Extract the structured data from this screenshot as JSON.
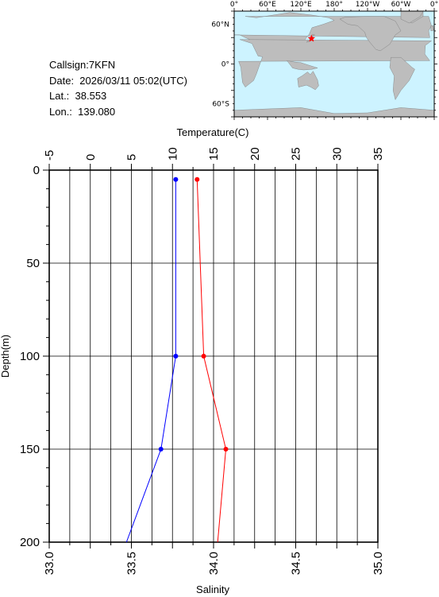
{
  "station": {
    "callsign_label": "Callsign:7KFN",
    "date_label": "Date:  2026/03/11 05:02(UTC)",
    "lat_label": "Lat.:  38.553",
    "lon_label": "Lon.:  139.080"
  },
  "map": {
    "lon_labels": [
      "0°",
      "60°E",
      "120°E",
      "180°",
      "120°W",
      "60°W",
      "0°"
    ],
    "lat_labels": [
      "60°N",
      "0°",
      "60°S"
    ],
    "ocean_color": "#cdf3ff",
    "land_color": "#bdbdbd",
    "marker": {
      "lat": 38.553,
      "lon": 139.08,
      "color": "#ff0000",
      "shape": "star"
    }
  },
  "chart_data": {
    "type": "line",
    "ylabel": "Depth(m)",
    "ylim": [
      0,
      200
    ],
    "y_inverted": true,
    "y_ticks": [
      0,
      50,
      100,
      150,
      200
    ],
    "temperature_axis": {
      "label": "Temperature(C)",
      "position": "top",
      "xlim": [
        -5,
        35
      ],
      "ticks": [
        -5,
        0,
        5,
        10,
        15,
        20,
        25,
        30,
        35
      ]
    },
    "salinity_axis": {
      "label": "Salinity",
      "position": "bottom",
      "xlim": [
        33.0,
        35.0
      ],
      "ticks": [
        "33.0",
        "33.5",
        "34.0",
        "34.5",
        "35.0"
      ]
    },
    "grid": true,
    "series": [
      {
        "axis": "temperature",
        "color": "#ff0000",
        "depth": [
          5,
          100,
          150,
          200
        ],
        "values": [
          13.0,
          13.8,
          16.5,
          15.5
        ],
        "markers": [
          true,
          true,
          true,
          false
        ]
      },
      {
        "axis": "salinity",
        "color": "#0000ff",
        "depth": [
          5,
          100,
          150,
          200
        ],
        "values": [
          33.77,
          33.77,
          33.68,
          33.47
        ],
        "markers": [
          true,
          true,
          true,
          false
        ]
      }
    ]
  }
}
